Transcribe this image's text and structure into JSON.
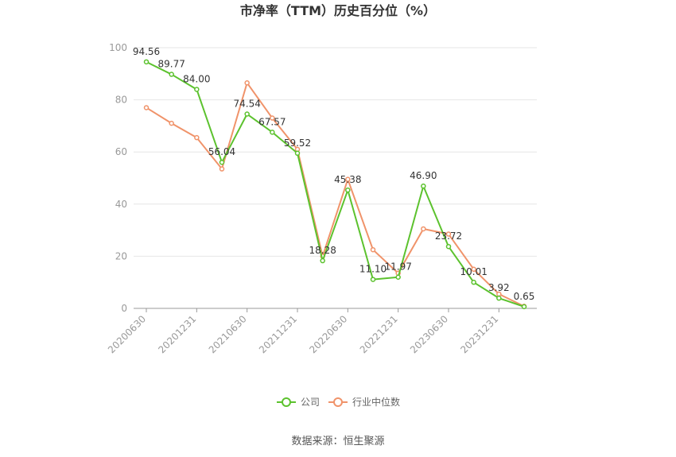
{
  "chart_data": {
    "type": "line",
    "title": "市净率（TTM）历史百分位（%）",
    "xlabel": "",
    "ylabel": "",
    "ylim": [
      0,
      100
    ],
    "yticks": [
      0,
      20,
      40,
      60,
      80,
      100
    ],
    "x": [
      "20200630",
      "20200930",
      "20201231",
      "20210331",
      "20210630",
      "20210930",
      "20211231",
      "20220331",
      "20220630",
      "20220930",
      "20221231",
      "20230331",
      "20230630",
      "20230930",
      "20231231",
      "20240331"
    ],
    "x_tick_labels": [
      "20200630",
      "20201231",
      "20210630",
      "20211231",
      "20220630",
      "20221231",
      "20230630",
      "20231231"
    ],
    "series": [
      {
        "name": "公司",
        "color": "#5cc22e",
        "values": [
          94.56,
          89.77,
          84.0,
          56.04,
          74.54,
          67.57,
          59.52,
          18.28,
          45.38,
          11.1,
          11.97,
          46.9,
          23.72,
          10.01,
          3.92,
          0.65
        ],
        "labels": [
          "94.56",
          "89.77",
          "84.00",
          "56.04",
          "74.54",
          "67.57",
          "59.52",
          "18.28",
          "45.38",
          "11.10",
          "11.97",
          "46.90",
          "23.72",
          "10.01",
          "3.92",
          "0.65"
        ]
      },
      {
        "name": "行业中位数",
        "color": "#f0936a",
        "values": [
          77.0,
          71.0,
          65.5,
          53.5,
          86.5,
          73.0,
          61.0,
          20.0,
          49.5,
          22.5,
          13.5,
          30.5,
          28.5,
          15.0,
          5.5,
          0.8
        ]
      }
    ],
    "legend": {
      "position": "bottom"
    },
    "grid": true,
    "source": "数据来源：恒生聚源"
  }
}
